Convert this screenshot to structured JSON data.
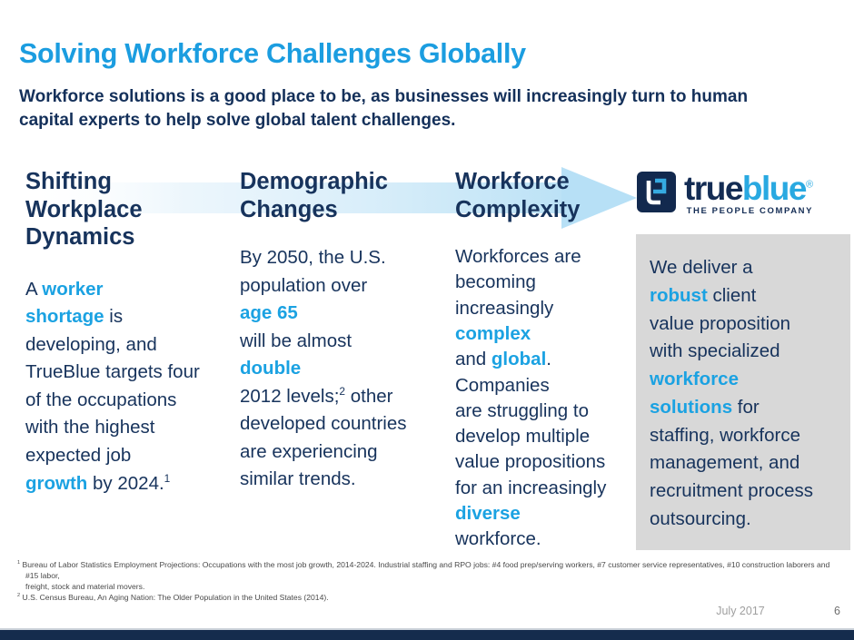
{
  "slide": {
    "title": "Solving Workforce Challenges Globally",
    "subtitle": "Workforce solutions is a good place to be, as businesses will increasingly turn to human\ncapital experts to help solve global talent challenges.",
    "date": "July 2017",
    "page_number": "6"
  },
  "colors": {
    "accent_blue": "#1ba2e2",
    "title_blue": "#1b9de0",
    "navy_text": "#17335c",
    "logo_navy": "#132c54",
    "arrow_band": "#b7e0f6",
    "value_box_bg": "#d8d8d8",
    "footer_bar": "#152c4d",
    "footnote_gray": "#4a4a4a",
    "date_gray": "#9f9f9f"
  },
  "logo": {
    "icon": "trueblue-interlock-icon",
    "brand_first": "true",
    "brand_second": "blue",
    "registered": "®",
    "tagline": "THE PEOPLE COMPANY"
  },
  "columns": [
    {
      "heading": "Shifting\nWorkplace\nDynamics",
      "body": [
        {
          "t": "A "
        },
        {
          "t": "worker",
          "c": "a"
        },
        "\n",
        {
          "t": "shortage",
          "c": "a"
        },
        {
          "t": " is"
        },
        "\n",
        {
          "t": "developing, and"
        },
        "\n",
        {
          "t": "TrueBlue targets four"
        },
        "\n",
        {
          "t": "of the occupations"
        },
        "\n",
        {
          "t": "with the highest"
        },
        "\n",
        {
          "t": "expected job"
        },
        "\n",
        {
          "t": "growth",
          "c": "a"
        },
        {
          "t": " by 2024."
        },
        {
          "t": "1",
          "c": "s"
        }
      ]
    },
    {
      "heading": "Demographic\nChanges",
      "body": [
        {
          "t": "By 2050, the U.S."
        },
        "\n",
        {
          "t": "population over"
        },
        "\n",
        {
          "t": "age 65",
          "c": "a"
        },
        "\n",
        {
          "t": "will be almost"
        },
        "\n",
        {
          "t": "double",
          "c": "a"
        },
        "\n",
        {
          "t": "2012 levels;"
        },
        {
          "t": "2",
          "c": "s"
        },
        {
          "t": " other"
        },
        "\n",
        {
          "t": "developed countries"
        },
        "\n",
        {
          "t": "are experiencing"
        },
        "\n",
        {
          "t": "similar trends."
        }
      ]
    },
    {
      "heading": "Workforce\nComplexity",
      "body": [
        {
          "t": "Workforces are"
        },
        "\n",
        {
          "t": "becoming"
        },
        "\n",
        {
          "t": "increasingly"
        },
        "\n",
        {
          "t": "complex",
          "c": "a"
        },
        "\n",
        {
          "t": "and "
        },
        {
          "t": "global",
          "c": "a"
        },
        {
          "t": "."
        },
        "\n",
        {
          "t": "Companies"
        },
        "\n",
        {
          "t": "are struggling to"
        },
        "\n",
        {
          "t": "develop multiple"
        },
        "\n",
        {
          "t": "value propositions"
        },
        "\n",
        {
          "t": "for an increasingly"
        },
        "\n",
        {
          "t": "diverse",
          "c": "a"
        },
        "\n",
        {
          "t": "workforce."
        }
      ]
    }
  ],
  "value_box": {
    "body": [
      {
        "t": "We deliver a"
      },
      "\n",
      {
        "t": "robust",
        "c": "a"
      },
      {
        "t": " client"
      },
      "\n",
      {
        "t": "value proposition"
      },
      "\n",
      {
        "t": "with specialized"
      },
      "\n",
      {
        "t": "workforce",
        "c": "a"
      },
      "\n",
      {
        "t": "solutions",
        "c": "a"
      },
      {
        "t": " for"
      },
      "\n",
      {
        "t": "staffing, workforce"
      },
      "\n",
      {
        "t": "management, and"
      },
      "\n",
      {
        "t": "recruitment process"
      },
      "\n",
      {
        "t": "outsourcing."
      }
    ]
  },
  "footnotes": [
    {
      "marker": "1",
      "text": "Bureau of Labor Statistics Employment Projections: Occupations with the most job growth, 2014-2024. Industrial staffing and RPO jobs: #4 food prep/serving workers, #7 customer service representatives, #10 construction laborers and #15 labor,\nfreight, stock and material movers."
    },
    {
      "marker": "2",
      "text": "U.S. Census Bureau, An Aging Nation: The Older Population in the United States (2014)."
    }
  ]
}
